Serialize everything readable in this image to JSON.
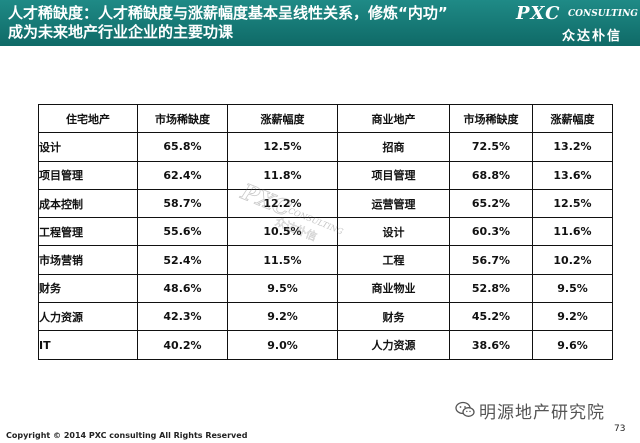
{
  "header": {
    "title_line1": "人才稀缺度：人才稀缺度与涨薪幅度基本呈线性关系，修炼“内功”",
    "title_line2": "成为未来地产行业企业的主要功课",
    "logo_main": "PXC",
    "logo_sub": "CONSULTING",
    "logo_cn": "众达朴信",
    "header_color": "#17807c"
  },
  "table": {
    "headers": [
      "住宅地产",
      "市场稀缺度",
      "涨薪幅度",
      "商业地产",
      "市场稀缺度",
      "涨薪幅度"
    ],
    "rows": [
      [
        "设计",
        "65.8%",
        "12.5%",
        "招商",
        "72.5%",
        "13.2%"
      ],
      [
        "项目管理",
        "62.4%",
        "11.8%",
        "项目管理",
        "68.8%",
        "13.6%"
      ],
      [
        "成本控制",
        "58.7%",
        "12.2%",
        "运营管理",
        "65.2%",
        "12.5%"
      ],
      [
        "工程管理",
        "55.6%",
        "10.5%",
        "设计",
        "60.3%",
        "11.6%"
      ],
      [
        "市场营销",
        "52.4%",
        "11.5%",
        "工程",
        "56.7%",
        "10.2%"
      ],
      [
        "财务",
        "48.6%",
        "9.5%",
        "商业物业",
        "52.8%",
        "9.5%"
      ],
      [
        "人力资源",
        "42.3%",
        "9.2%",
        "财务",
        "45.2%",
        "9.2%"
      ],
      [
        "IT",
        "40.2%",
        "9.0%",
        "人力资源",
        "38.6%",
        "9.6%"
      ]
    ]
  },
  "watermark": {
    "brand": "PXC",
    "sub": "CONSULTING",
    "cn": "众达朴信"
  },
  "footer": {
    "copyright": "Copyright © 2014  PXC consulting All Rights Reserved",
    "page_number": "73",
    "wechat_label": "明源地产研究院",
    "wechat_icon": "wechat-icon"
  }
}
